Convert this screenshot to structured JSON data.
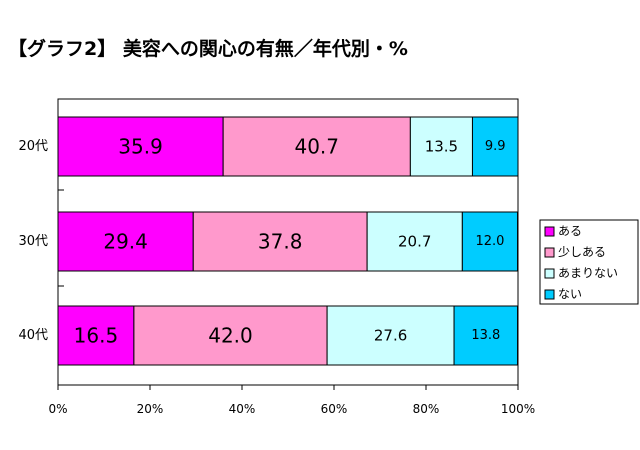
{
  "chart_data": {
    "type": "bar",
    "orientation": "horizontal",
    "stacked": true,
    "title": "【グラフ2】 美容への関心の有無／年代別・%",
    "categories": [
      "20代",
      "30代",
      "40代"
    ],
    "series": [
      {
        "name": "ある",
        "color": "#ff00ff",
        "values": [
          35.9,
          29.4,
          16.5
        ]
      },
      {
        "name": "少しある",
        "color": "#ff99cc",
        "values": [
          40.7,
          37.8,
          42.0
        ]
      },
      {
        "name": "あまりない",
        "color": "#ccffff",
        "values": [
          13.5,
          20.7,
          27.6
        ]
      },
      {
        "name": "ない",
        "color": "#00ccff",
        "values": [
          9.9,
          12.0,
          13.8
        ]
      }
    ],
    "xlim": [
      0,
      100
    ],
    "x_ticks": [
      "0%",
      "20%",
      "40%",
      "60%",
      "80%",
      "100%"
    ],
    "grid": false,
    "legend_position": "right"
  }
}
